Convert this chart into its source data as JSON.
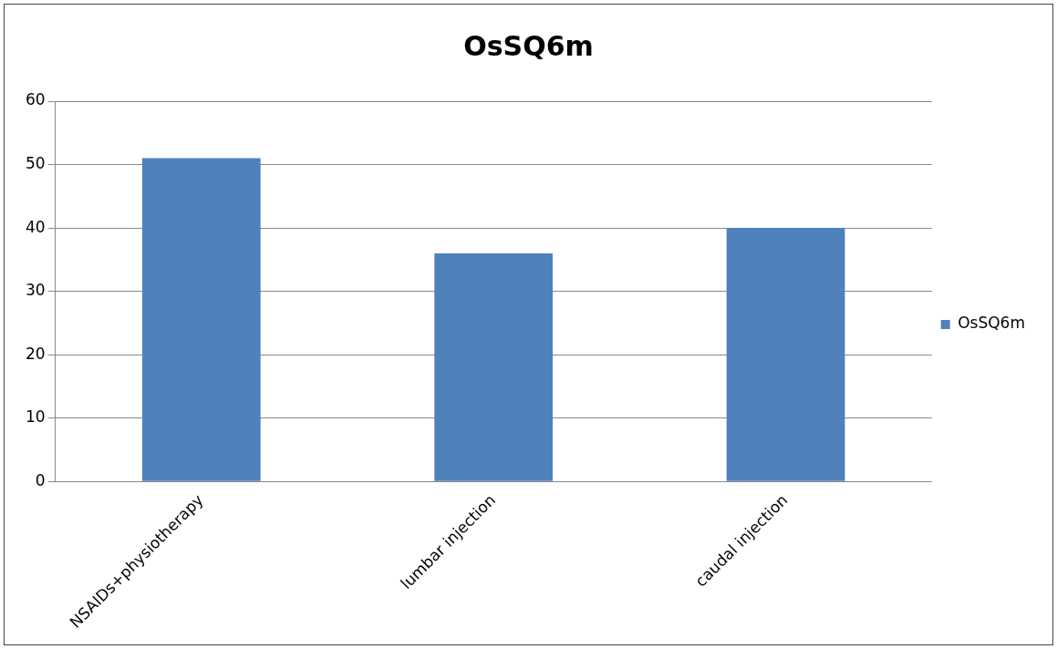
{
  "chart_data": {
    "type": "bar",
    "title": "OsSQ6m",
    "categories": [
      "NSAIDs+physiotherapy",
      "lumbar injection",
      "caudal injection"
    ],
    "series": [
      {
        "name": "OsSQ6m",
        "color": "#4f81bd",
        "values": [
          51,
          36,
          40
        ]
      }
    ],
    "ylim": [
      0,
      60
    ],
    "yticks": [
      0,
      10,
      20,
      30,
      40,
      50,
      60
    ],
    "grid": "y",
    "legend": "right"
  }
}
